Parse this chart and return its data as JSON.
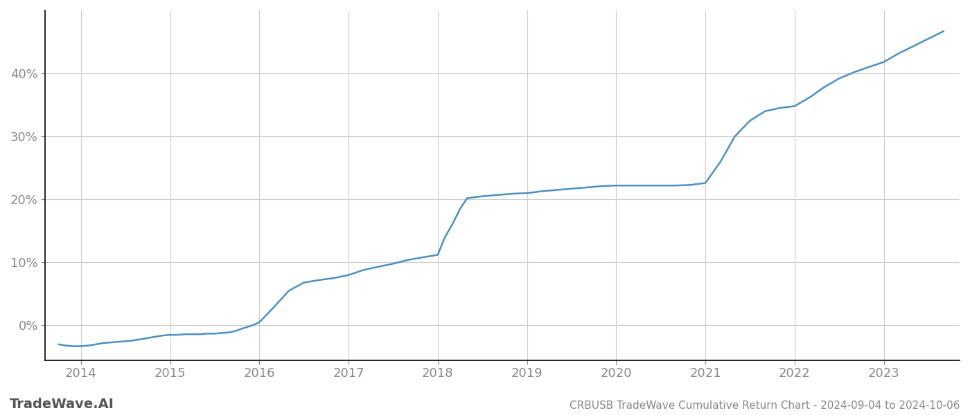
{
  "title": "CRBUSB TradeWave Cumulative Return Chart - 2024-09-04 to 2024-10-06",
  "watermark": "TradeWave.AI",
  "line_color": "#4a90c4",
  "background_color": "#ffffff",
  "grid_color": "#cccccc",
  "x_years": [
    2014,
    2015,
    2016,
    2017,
    2018,
    2019,
    2020,
    2021,
    2022,
    2023
  ],
  "y_ticks": [
    0.0,
    0.1,
    0.2,
    0.3,
    0.4
  ],
  "y_tick_labels": [
    "0%",
    "10%",
    "20%",
    "30%",
    "40%"
  ],
  "ylim": [
    -0.055,
    0.5
  ],
  "xlim": [
    2013.6,
    2023.85
  ],
  "data_x": [
    2013.75,
    2013.83,
    2013.92,
    2014.0,
    2014.08,
    2014.17,
    2014.25,
    2014.33,
    2014.42,
    2014.5,
    2014.58,
    2014.67,
    2014.75,
    2014.83,
    2014.92,
    2015.0,
    2015.08,
    2015.17,
    2015.25,
    2015.33,
    2015.42,
    2015.5,
    2015.58,
    2015.67,
    2015.75,
    2015.83,
    2015.92,
    2016.0,
    2016.17,
    2016.33,
    2016.5,
    2016.67,
    2016.83,
    2017.0,
    2017.17,
    2017.33,
    2017.5,
    2017.67,
    2017.83,
    2018.0,
    2018.08,
    2018.17,
    2018.25,
    2018.33,
    2018.5,
    2018.67,
    2018.83,
    2019.0,
    2019.17,
    2019.33,
    2019.5,
    2019.67,
    2019.83,
    2020.0,
    2020.08,
    2020.17,
    2020.25,
    2020.42,
    2020.67,
    2020.83,
    2021.0,
    2021.17,
    2021.33,
    2021.5,
    2021.67,
    2021.83,
    2022.0,
    2022.17,
    2022.33,
    2022.5,
    2022.67,
    2022.83,
    2023.0,
    2023.17,
    2023.33,
    2023.5,
    2023.67
  ],
  "data_y": [
    -0.03,
    -0.032,
    -0.033,
    -0.033,
    -0.032,
    -0.03,
    -0.028,
    -0.027,
    -0.026,
    -0.025,
    -0.024,
    -0.022,
    -0.02,
    -0.018,
    -0.016,
    -0.015,
    -0.015,
    -0.014,
    -0.014,
    -0.014,
    -0.013,
    -0.013,
    -0.012,
    -0.011,
    -0.008,
    -0.004,
    0.0,
    0.005,
    0.03,
    0.055,
    0.068,
    0.072,
    0.075,
    0.08,
    0.088,
    0.093,
    0.098,
    0.104,
    0.108,
    0.112,
    0.14,
    0.162,
    0.185,
    0.202,
    0.205,
    0.207,
    0.209,
    0.21,
    0.213,
    0.215,
    0.217,
    0.219,
    0.221,
    0.222,
    0.222,
    0.222,
    0.222,
    0.222,
    0.222,
    0.223,
    0.226,
    0.26,
    0.3,
    0.325,
    0.34,
    0.345,
    0.348,
    0.362,
    0.378,
    0.392,
    0.402,
    0.41,
    0.418,
    0.432,
    0.443,
    0.455,
    0.467
  ],
  "title_fontsize": 11,
  "tick_fontsize": 13,
  "watermark_fontsize": 14,
  "line_width": 1.8
}
